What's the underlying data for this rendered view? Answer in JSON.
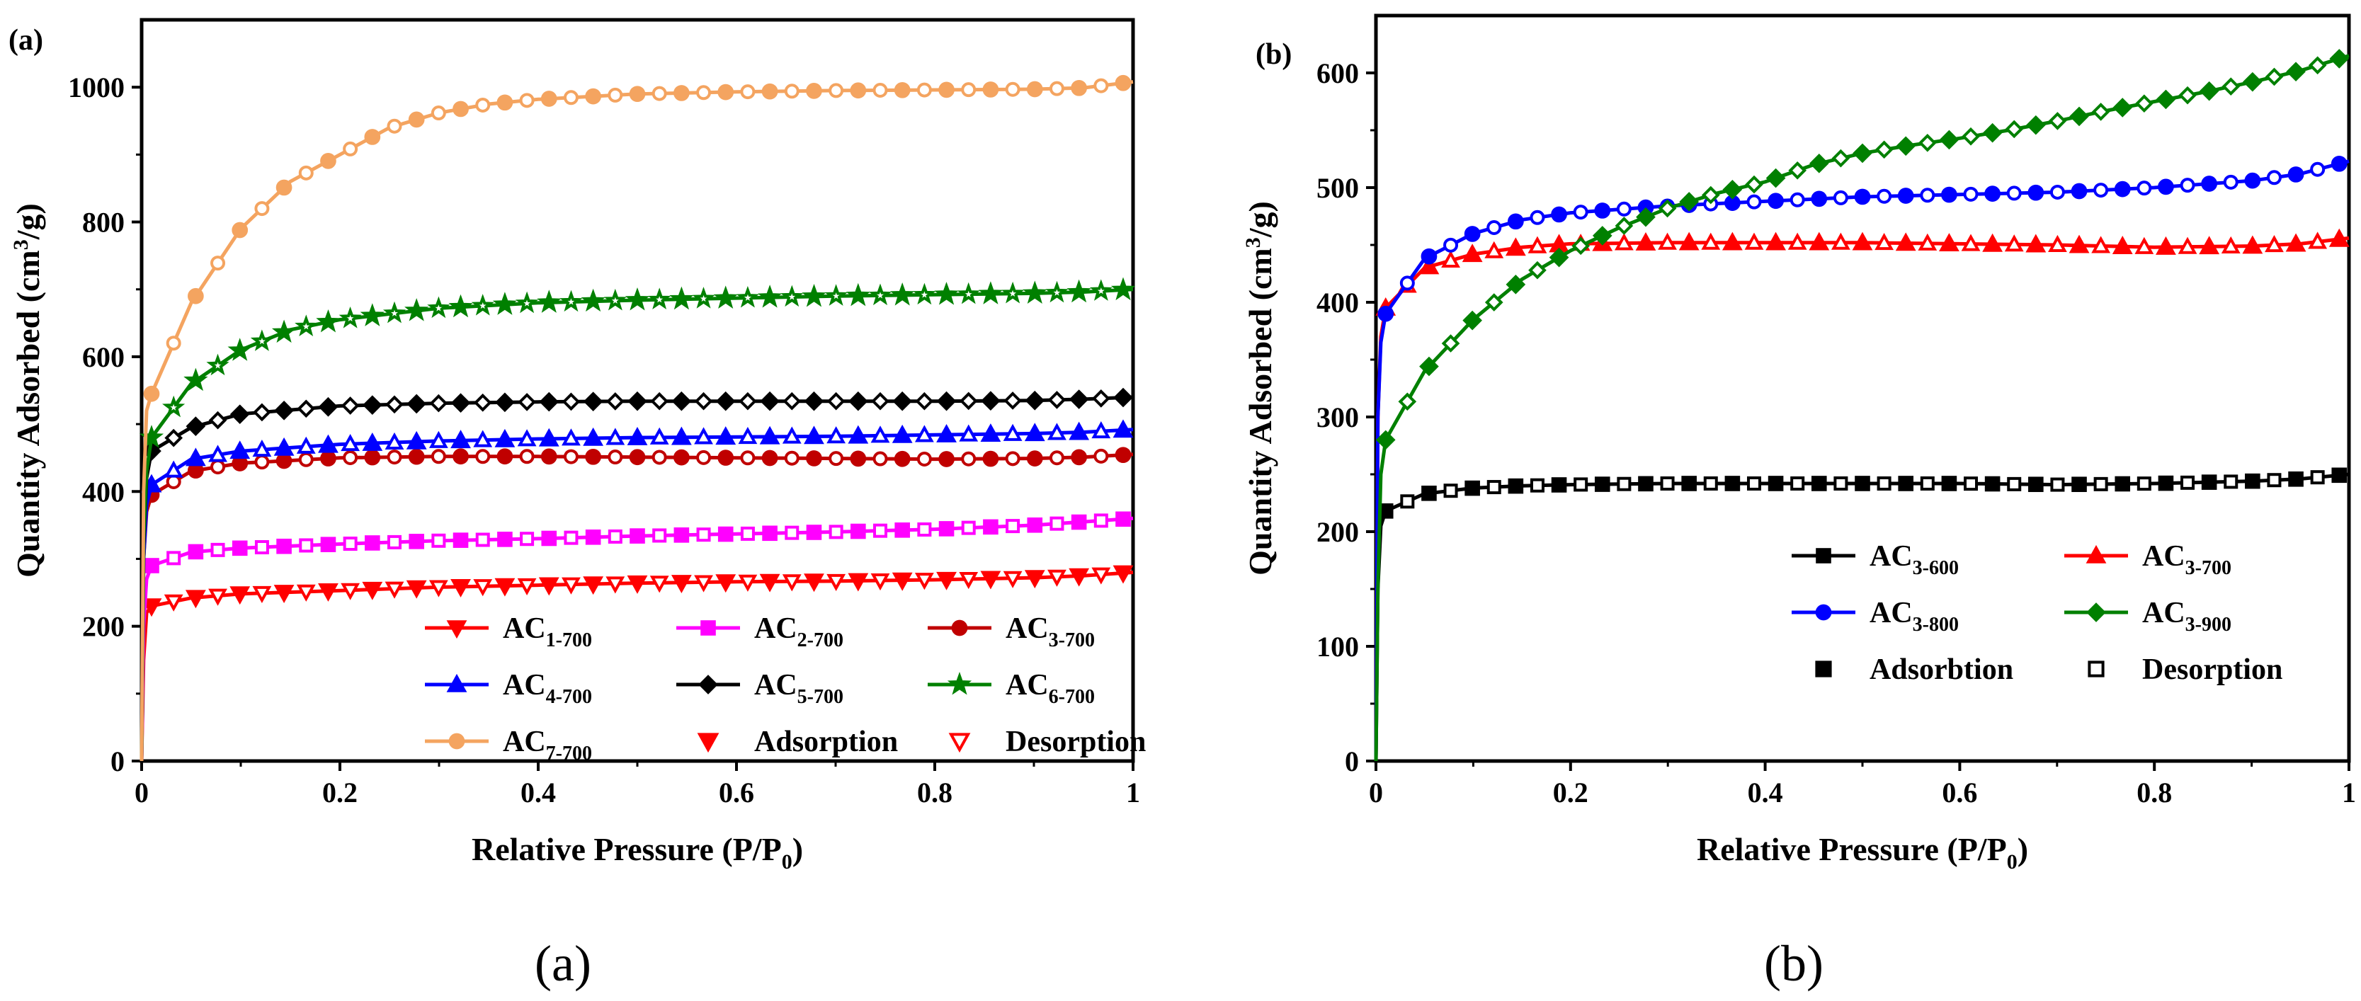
{
  "figure": {
    "captions": [
      "(a)",
      "(b)"
    ]
  },
  "chart_data": [
    {
      "type": "line",
      "panel_label": "(a)",
      "xlabel": "Relative Pressure (P/P",
      "xlabel_sub": "0",
      "xlabel_end": ")",
      "ylabel": "Quantity Adsorbed (cm",
      "ylabel_sup": "3",
      "ylabel_end": "/g)",
      "xlim": [
        0,
        1
      ],
      "ylim": [
        0,
        1100
      ],
      "xticks": [
        0,
        0.2,
        0.4,
        0.6,
        0.8,
        1
      ],
      "xtick_labels": [
        "0",
        "0.2",
        "0.4",
        "0.6",
        "0.8",
        "1"
      ],
      "yticks": [
        0,
        200,
        400,
        600,
        800,
        1000
      ],
      "ytick_labels": [
        "0",
        "200",
        "400",
        "600",
        "800",
        "1000"
      ],
      "legend_position": "bottom-right",
      "series": [
        {
          "name": "AC",
          "sub": "1-700",
          "color": "#ff0000",
          "marker": "triangle-down",
          "x": [
            0,
            0.002,
            0.005,
            0.01,
            0.05,
            0.1,
            0.2,
            0.3,
            0.4,
            0.5,
            0.6,
            0.7,
            0.8,
            0.9,
            0.95,
            1.0
          ],
          "y": [
            0,
            150,
            220,
            230,
            242,
            248,
            253,
            258,
            261,
            264,
            266,
            267,
            269,
            272,
            275,
            280
          ]
        },
        {
          "name": "AC",
          "sub": "2-700",
          "color": "#ff00ff",
          "marker": "square",
          "x": [
            0,
            0.002,
            0.005,
            0.01,
            0.05,
            0.1,
            0.2,
            0.3,
            0.4,
            0.5,
            0.6,
            0.7,
            0.8,
            0.9,
            0.95,
            1.0
          ],
          "y": [
            0,
            200,
            270,
            290,
            310,
            316,
            322,
            327,
            330,
            334,
            337,
            340,
            344,
            350,
            355,
            360
          ]
        },
        {
          "name": "AC",
          "sub": "3-700",
          "color": "#c00000",
          "marker": "circle",
          "x": [
            0,
            0.002,
            0.005,
            0.01,
            0.05,
            0.1,
            0.2,
            0.3,
            0.4,
            0.5,
            0.6,
            0.7,
            0.8,
            0.9,
            0.95,
            1.0
          ],
          "y": [
            0,
            300,
            370,
            395,
            430,
            442,
            450,
            452,
            452,
            451,
            450,
            449,
            448,
            449,
            451,
            455
          ]
        },
        {
          "name": "AC",
          "sub": "4-700",
          "color": "#0000ff",
          "marker": "triangle-up",
          "x": [
            0,
            0.002,
            0.005,
            0.01,
            0.05,
            0.1,
            0.2,
            0.3,
            0.4,
            0.5,
            0.6,
            0.7,
            0.8,
            0.9,
            0.95,
            1.0
          ],
          "y": [
            0,
            300,
            380,
            410,
            448,
            460,
            470,
            475,
            478,
            480,
            481,
            482,
            484,
            486,
            488,
            492
          ]
        },
        {
          "name": "AC",
          "sub": "5-700",
          "color": "#000000",
          "marker": "diamond",
          "x": [
            0,
            0.002,
            0.005,
            0.01,
            0.05,
            0.1,
            0.2,
            0.3,
            0.4,
            0.5,
            0.6,
            0.7,
            0.8,
            0.9,
            0.95,
            1.0
          ],
          "y": [
            0,
            320,
            420,
            460,
            495,
            515,
            527,
            531,
            533,
            534,
            534,
            534,
            534,
            535,
            537,
            540
          ]
        },
        {
          "name": "AC",
          "sub": "6-700",
          "color": "#008000",
          "marker": "star",
          "x": [
            0,
            0.002,
            0.005,
            0.01,
            0.05,
            0.1,
            0.15,
            0.2,
            0.3,
            0.4,
            0.5,
            0.6,
            0.7,
            0.8,
            0.9,
            0.95,
            1.0
          ],
          "y": [
            0,
            330,
            430,
            480,
            560,
            610,
            640,
            655,
            672,
            680,
            684,
            687,
            690,
            692,
            694,
            696,
            700
          ]
        },
        {
          "name": "AC",
          "sub": "7-700",
          "color": "#f4a460",
          "marker": "circle",
          "x": [
            0,
            0.002,
            0.005,
            0.01,
            0.05,
            0.1,
            0.15,
            0.2,
            0.25,
            0.3,
            0.35,
            0.4,
            0.5,
            0.6,
            0.7,
            0.8,
            0.9,
            0.95,
            1.0
          ],
          "y": [
            0,
            400,
            520,
            545,
            680,
            790,
            860,
            900,
            940,
            962,
            975,
            982,
            990,
            993,
            995,
            996,
            997,
            999,
            1008
          ]
        }
      ],
      "legend_extra": [
        {
          "label": "Adsorption",
          "color": "#ff0000",
          "marker": "triangle-down",
          "filled": true
        },
        {
          "label": "Desorption",
          "color": "#ff0000",
          "marker": "triangle-down",
          "filled": false
        }
      ]
    },
    {
      "type": "line",
      "panel_label": "(b)",
      "xlabel": "Relative Pressure (P/P",
      "xlabel_sub": "0",
      "xlabel_end": ")",
      "ylabel": "Quantity Adsorbed (cm",
      "ylabel_sup": "3",
      "ylabel_end": "/g)",
      "xlim": [
        0,
        1
      ],
      "ylim": [
        0,
        650
      ],
      "xticks": [
        0,
        0.2,
        0.4,
        0.6,
        0.8,
        1
      ],
      "xtick_labels": [
        "0",
        "0.2",
        "0.4",
        "0.6",
        "0.8",
        "1"
      ],
      "yticks": [
        0,
        100,
        200,
        300,
        400,
        500,
        600
      ],
      "ytick_labels": [
        "0",
        "100",
        "200",
        "300",
        "400",
        "500",
        "600"
      ],
      "legend_position": "bottom-right",
      "series": [
        {
          "name": "AC",
          "sub": "3-600",
          "color": "#000000",
          "marker": "square",
          "x": [
            0,
            0.002,
            0.005,
            0.01,
            0.05,
            0.1,
            0.15,
            0.2,
            0.3,
            0.4,
            0.5,
            0.6,
            0.7,
            0.8,
            0.9,
            0.95,
            1.0
          ],
          "y": [
            0,
            150,
            205,
            218,
            233,
            238,
            240,
            241,
            242,
            242,
            242,
            242,
            241,
            242,
            244,
            246,
            250
          ]
        },
        {
          "name": "AC",
          "sub": "3-700",
          "color": "#ff0000",
          "marker": "triangle-up",
          "x": [
            0,
            0.002,
            0.005,
            0.01,
            0.05,
            0.1,
            0.15,
            0.2,
            0.3,
            0.4,
            0.5,
            0.6,
            0.7,
            0.8,
            0.9,
            0.95,
            1.0
          ],
          "y": [
            0,
            300,
            370,
            395,
            430,
            442,
            448,
            451,
            452,
            452,
            452,
            451,
            450,
            448,
            449,
            451,
            456
          ]
        },
        {
          "name": "AC",
          "sub": "3-800",
          "color": "#0000ff",
          "marker": "circle",
          "x": [
            0,
            0.002,
            0.005,
            0.01,
            0.05,
            0.1,
            0.15,
            0.2,
            0.25,
            0.3,
            0.4,
            0.5,
            0.6,
            0.7,
            0.8,
            0.9,
            0.95,
            1.0
          ],
          "y": [
            0,
            300,
            365,
            390,
            438,
            460,
            472,
            478,
            481,
            484,
            488,
            492,
            494,
            496,
            500,
            506,
            512,
            523
          ]
        },
        {
          "name": "AC",
          "sub": "3-900",
          "color": "#008000",
          "marker": "diamond",
          "x": [
            0,
            0.002,
            0.005,
            0.01,
            0.05,
            0.1,
            0.15,
            0.2,
            0.25,
            0.3,
            0.35,
            0.4,
            0.45,
            0.5,
            0.55,
            0.6,
            0.65,
            0.7,
            0.75,
            0.8,
            0.85,
            0.9,
            0.95,
            1.0
          ],
          "y": [
            0,
            150,
            250,
            280,
            340,
            385,
            420,
            445,
            465,
            482,
            495,
            505,
            520,
            530,
            537,
            543,
            550,
            558,
            567,
            575,
            583,
            592,
            602,
            615
          ]
        }
      ],
      "legend_extra": [
        {
          "label": "Adsorbtion",
          "color": "#000000",
          "marker": "square",
          "filled": true
        },
        {
          "label": "Desorption",
          "color": "#000000",
          "marker": "square",
          "filled": false
        }
      ]
    }
  ]
}
